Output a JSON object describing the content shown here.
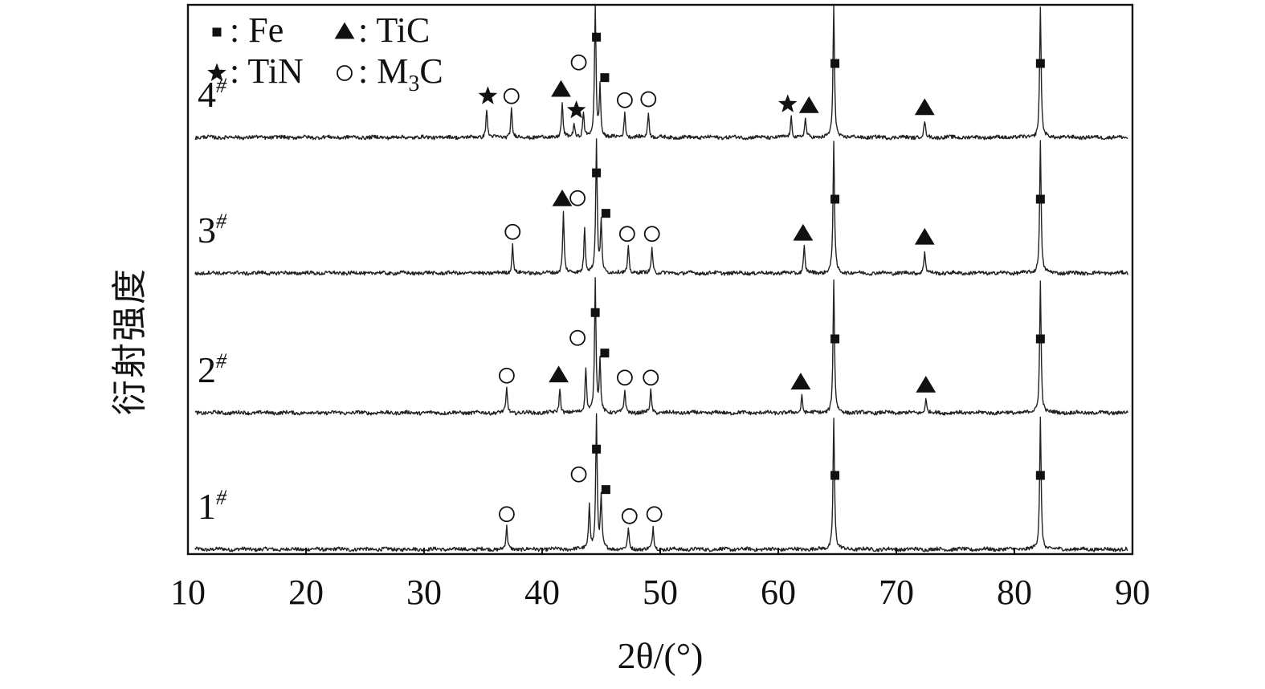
{
  "chart_data": {
    "type": "line",
    "xlabel": "2θ/(°)",
    "ylabel": "衍射强度",
    "xlim": [
      10,
      90
    ],
    "x_ticks": [
      "10",
      "20",
      "30",
      "40",
      "50",
      "60",
      "70",
      "80",
      "90"
    ],
    "grid": false,
    "legend_position": "top-left",
    "legend": [
      {
        "symbol": "square",
        "label": ": Fe"
      },
      {
        "symbol": "triangle",
        "label": ": TiC"
      },
      {
        "symbol": "star",
        "label": ": TiN"
      },
      {
        "symbol": "circle",
        "label": ": M",
        "subscript": "3",
        "suffix": "C"
      }
    ],
    "series": [
      {
        "name": "1#",
        "name_base": "1",
        "name_sup": "#",
        "peaks": [
          {
            "x": 37.0,
            "h": 0.22,
            "phase": "M3C"
          },
          {
            "x": 44.0,
            "h": 0.45,
            "phase": "M3C"
          },
          {
            "x": 44.6,
            "h": 1.3,
            "phase": "Fe"
          },
          {
            "x": 45.0,
            "h": 0.5,
            "phase": "Fe"
          },
          {
            "x": 47.3,
            "h": 0.2,
            "phase": "M3C"
          },
          {
            "x": 49.4,
            "h": 0.22,
            "phase": "M3C"
          },
          {
            "x": 64.7,
            "h": 1.3,
            "phase": "Fe"
          },
          {
            "x": 82.2,
            "h": 1.3,
            "phase": "Fe"
          }
        ],
        "markers": [
          {
            "x": 37.0,
            "phase": "M3C"
          },
          {
            "x": 43.1,
            "phase": "M3C"
          },
          {
            "x": 44.6,
            "phase": "Fe"
          },
          {
            "x": 45.4,
            "phase": "Fe"
          },
          {
            "x": 47.4,
            "phase": "M3C"
          },
          {
            "x": 49.5,
            "phase": "M3C"
          },
          {
            "x": 64.8,
            "phase": "Fe"
          },
          {
            "x": 82.2,
            "phase": "Fe"
          }
        ]
      },
      {
        "name": "2#",
        "name_base": "2",
        "name_sup": "#",
        "peaks": [
          {
            "x": 37.0,
            "h": 0.24,
            "phase": "M3C"
          },
          {
            "x": 41.5,
            "h": 0.24,
            "phase": "TiC"
          },
          {
            "x": 43.7,
            "h": 0.45,
            "phase": "M3C"
          },
          {
            "x": 44.5,
            "h": 1.3,
            "phase": "Fe"
          },
          {
            "x": 44.9,
            "h": 0.5,
            "phase": "Fe"
          },
          {
            "x": 47.0,
            "h": 0.22,
            "phase": "M3C"
          },
          {
            "x": 49.2,
            "h": 0.22,
            "phase": "M3C"
          },
          {
            "x": 62.0,
            "h": 0.17,
            "phase": "TiC"
          },
          {
            "x": 64.7,
            "h": 1.3,
            "phase": "Fe"
          },
          {
            "x": 72.5,
            "h": 0.14,
            "phase": "TiC"
          },
          {
            "x": 82.2,
            "h": 1.3,
            "phase": "Fe"
          }
        ],
        "markers": [
          {
            "x": 37.0,
            "phase": "M3C"
          },
          {
            "x": 41.4,
            "phase": "TiC"
          },
          {
            "x": 43.0,
            "phase": "M3C"
          },
          {
            "x": 44.5,
            "phase": "Fe"
          },
          {
            "x": 45.3,
            "phase": "Fe"
          },
          {
            "x": 47.0,
            "phase": "M3C"
          },
          {
            "x": 49.2,
            "phase": "M3C"
          },
          {
            "x": 61.9,
            "phase": "TiC"
          },
          {
            "x": 64.8,
            "phase": "Fe"
          },
          {
            "x": 72.5,
            "phase": "TiC"
          },
          {
            "x": 82.2,
            "phase": "Fe"
          }
        ]
      },
      {
        "name": "3#",
        "name_base": "3",
        "name_sup": "#",
        "peaks": [
          {
            "x": 37.5,
            "h": 0.28,
            "phase": "M3C"
          },
          {
            "x": 41.8,
            "h": 0.6,
            "phase": "TiC"
          },
          {
            "x": 43.6,
            "h": 0.45,
            "phase": "M3C"
          },
          {
            "x": 44.6,
            "h": 1.3,
            "phase": "Fe"
          },
          {
            "x": 45.0,
            "h": 0.5,
            "phase": "Fe"
          },
          {
            "x": 47.3,
            "h": 0.26,
            "phase": "M3C"
          },
          {
            "x": 49.3,
            "h": 0.26,
            "phase": "M3C"
          },
          {
            "x": 62.2,
            "h": 0.26,
            "phase": "TiC"
          },
          {
            "x": 64.7,
            "h": 1.3,
            "phase": "Fe"
          },
          {
            "x": 72.4,
            "h": 0.22,
            "phase": "TiC"
          },
          {
            "x": 82.2,
            "h": 1.3,
            "phase": "Fe"
          }
        ],
        "markers": [
          {
            "x": 37.5,
            "phase": "M3C"
          },
          {
            "x": 41.7,
            "phase": "TiC"
          },
          {
            "x": 43.0,
            "phase": "M3C"
          },
          {
            "x": 44.6,
            "phase": "Fe"
          },
          {
            "x": 45.4,
            "phase": "Fe"
          },
          {
            "x": 47.2,
            "phase": "M3C"
          },
          {
            "x": 49.3,
            "phase": "M3C"
          },
          {
            "x": 62.1,
            "phase": "TiC"
          },
          {
            "x": 64.8,
            "phase": "Fe"
          },
          {
            "x": 72.4,
            "phase": "TiC"
          },
          {
            "x": 82.2,
            "phase": "Fe"
          }
        ]
      },
      {
        "name": "4#",
        "name_base": "4",
        "name_sup": "#",
        "peaks": [
          {
            "x": 35.3,
            "h": 0.28,
            "phase": "TiN"
          },
          {
            "x": 37.4,
            "h": 0.28,
            "phase": "M3C"
          },
          {
            "x": 41.7,
            "h": 0.34,
            "phase": "TiC"
          },
          {
            "x": 42.7,
            "h": 0.14,
            "phase": "TiN"
          },
          {
            "x": 43.5,
            "h": 0.25,
            "phase": "M3C"
          },
          {
            "x": 44.5,
            "h": 1.3,
            "phase": "Fe"
          },
          {
            "x": 44.9,
            "h": 0.5,
            "phase": "Fe"
          },
          {
            "x": 47.0,
            "h": 0.24,
            "phase": "M3C"
          },
          {
            "x": 49.0,
            "h": 0.25,
            "phase": "M3C"
          },
          {
            "x": 61.1,
            "h": 0.2,
            "phase": "TiN"
          },
          {
            "x": 62.3,
            "h": 0.18,
            "phase": "TiC"
          },
          {
            "x": 64.7,
            "h": 1.3,
            "phase": "Fe"
          },
          {
            "x": 72.4,
            "h": 0.16,
            "phase": "TiC"
          },
          {
            "x": 82.2,
            "h": 1.3,
            "phase": "Fe"
          }
        ],
        "markers": [
          {
            "x": 35.4,
            "phase": "TiN"
          },
          {
            "x": 37.4,
            "phase": "M3C"
          },
          {
            "x": 41.6,
            "phase": "TiC"
          },
          {
            "x": 42.9,
            "phase": "TiN"
          },
          {
            "x": 43.1,
            "phase": "M3C"
          },
          {
            "x": 44.6,
            "phase": "Fe"
          },
          {
            "x": 45.3,
            "phase": "Fe"
          },
          {
            "x": 47.0,
            "phase": "M3C"
          },
          {
            "x": 49.0,
            "phase": "M3C"
          },
          {
            "x": 60.8,
            "phase": "TiN"
          },
          {
            "x": 62.6,
            "phase": "TiC"
          },
          {
            "x": 64.8,
            "phase": "Fe"
          },
          {
            "x": 72.4,
            "phase": "TiC"
          },
          {
            "x": 82.2,
            "phase": "Fe"
          }
        ]
      }
    ]
  }
}
